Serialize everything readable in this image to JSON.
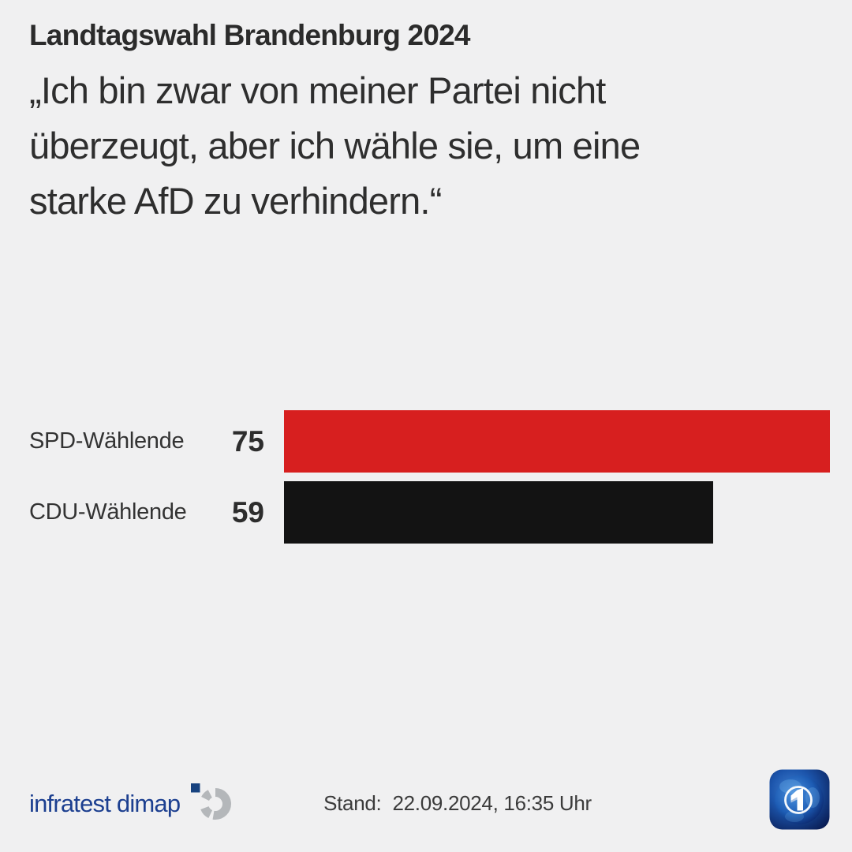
{
  "header": {
    "kicker": "Landtagswahl Brandenburg 2024",
    "quote_lines": [
      "„Ich bin zwar von meiner Partei nicht",
      "überzeugt, aber ich wähle sie, um eine",
      "starke AfD zu verhindern.“"
    ]
  },
  "chart_data": {
    "type": "bar",
    "orientation": "horizontal",
    "subtitle": "Landtagswahl Brandenburg 2024",
    "title": "„Ich bin zwar von meiner Partei nicht überzeugt, aber ich wähle sie, um eine starke AfD zu verhindern.“",
    "categories": [
      "SPD-Wählende",
      "CDU-Wählende"
    ],
    "values": [
      75,
      59
    ],
    "colors": [
      "#d71f1f",
      "#131313"
    ],
    "xlim": [
      0,
      75
    ],
    "grid": false,
    "legend": "none",
    "value_labels_shown": true
  },
  "footer": {
    "source_logo_text": "infratest dimap",
    "stand_label": "Stand:",
    "stand_value": "22.09.2024, 16:35 Uhr"
  },
  "colors": {
    "background": "#f0f0f1",
    "text_dark": "#2d2d2d",
    "spd_red": "#d71f1f",
    "cdu_black": "#131313",
    "infratest_blue": "#1c3f90",
    "infratest_square_blue": "#17427f",
    "infratest_ring_gray": "#b4b7ba",
    "ard_navy": "#0a1f5e"
  }
}
